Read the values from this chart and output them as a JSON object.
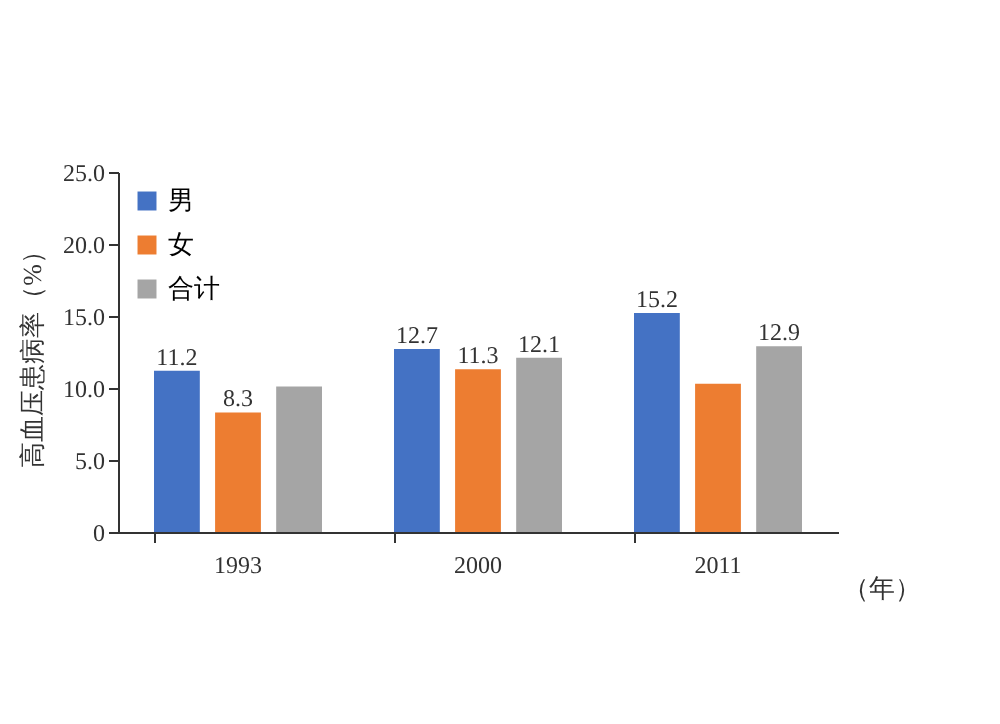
{
  "chart_data": {
    "type": "bar",
    "ylabel": "高血压患病率（%）",
    "xlabel": "（年）",
    "categories": [
      "1993",
      "2000",
      "2011"
    ],
    "series": [
      {
        "name": "男",
        "color": "#4472c4",
        "values": [
          11.2,
          12.7,
          15.2
        ],
        "value_labels": [
          "11.2",
          "12.7",
          "15.2"
        ]
      },
      {
        "name": "女",
        "color": "#ed7d31",
        "values": [
          8.3,
          11.3,
          10.3
        ],
        "value_labels": [
          "8.3",
          "11.3",
          null
        ]
      },
      {
        "name": "合计",
        "color": "#a5a5a5",
        "values": [
          10.1,
          12.1,
          12.9
        ],
        "value_labels": [
          null,
          "12.1",
          "12.9"
        ]
      }
    ],
    "ylim": [
      0,
      25
    ],
    "yticks": [
      {
        "value": 0,
        "label": "0"
      },
      {
        "value": 5,
        "label": "5.0"
      },
      {
        "value": 10,
        "label": "10.0"
      },
      {
        "value": 15,
        "label": "15.0"
      },
      {
        "value": 20,
        "label": "20.0"
      },
      {
        "value": 25,
        "label": "25.0"
      }
    ],
    "grid": false,
    "legend": "top left"
  }
}
